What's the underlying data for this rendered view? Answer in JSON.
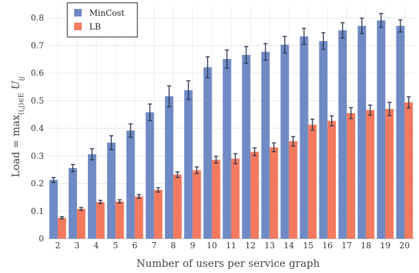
{
  "chart_data": {
    "type": "bar",
    "title": "",
    "xlabel": "Number of users per service graph",
    "ylabel": {
      "base": "Load = max",
      "subscript": "(i,j)∈E",
      "main": " U",
      "main_subscript": "ij"
    },
    "ylim": [
      0,
      0.84
    ],
    "yticks": [
      0,
      0.1,
      0.2,
      0.3,
      0.4,
      0.5,
      0.6,
      0.7,
      0.8
    ],
    "ytick_labels": [
      "0",
      "0.1",
      "0.2",
      "0.3",
      "0.4",
      "0.5",
      "0.6",
      "0.7",
      "0.8"
    ],
    "grid": true,
    "legend_position": "top-left",
    "categories": [
      "2",
      "3",
      "4",
      "5",
      "6",
      "7",
      "8",
      "9",
      "10",
      "11",
      "12",
      "13",
      "14",
      "15",
      "16",
      "17",
      "18",
      "19",
      "20"
    ],
    "series": [
      {
        "name": "MinCost",
        "color": "#6f8ac4",
        "values": [
          0.213,
          0.256,
          0.306,
          0.348,
          0.392,
          0.458,
          0.516,
          0.538,
          0.621,
          0.651,
          0.666,
          0.677,
          0.703,
          0.733,
          0.716,
          0.755,
          0.771,
          0.791,
          0.771
        ],
        "errors": [
          0.009,
          0.013,
          0.02,
          0.025,
          0.024,
          0.03,
          0.038,
          0.034,
          0.038,
          0.033,
          0.03,
          0.03,
          0.03,
          0.029,
          0.03,
          0.028,
          0.028,
          0.025,
          0.022
        ]
      },
      {
        "name": "LB",
        "color": "#f47a5f",
        "values": [
          0.076,
          0.108,
          0.133,
          0.135,
          0.153,
          0.177,
          0.232,
          0.248,
          0.286,
          0.29,
          0.315,
          0.331,
          0.353,
          0.413,
          0.427,
          0.455,
          0.466,
          0.47,
          0.494
        ],
        "errors": [
          0.004,
          0.005,
          0.006,
          0.006,
          0.007,
          0.008,
          0.01,
          0.012,
          0.012,
          0.018,
          0.014,
          0.016,
          0.017,
          0.02,
          0.018,
          0.02,
          0.018,
          0.024,
          0.02
        ]
      }
    ]
  }
}
